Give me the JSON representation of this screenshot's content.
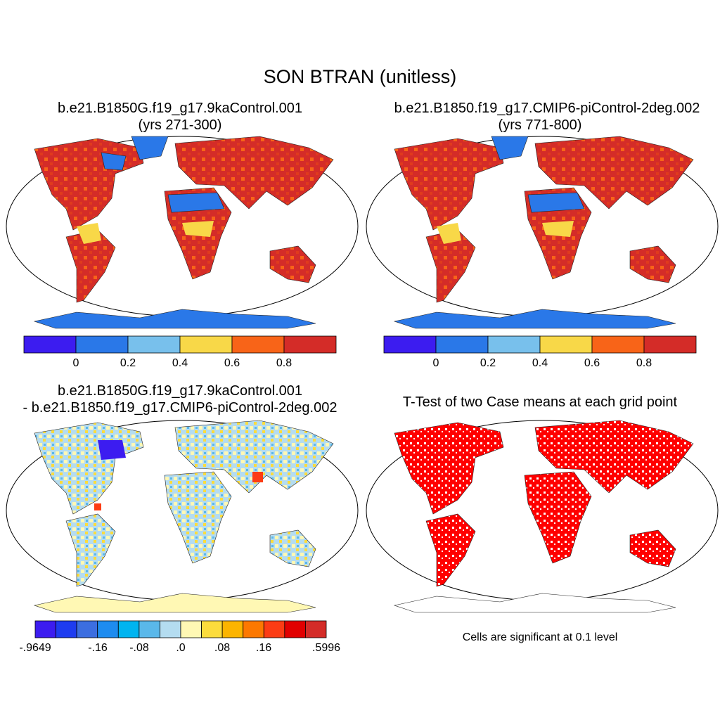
{
  "figure": {
    "title": "SON BTRAN (unitless)"
  },
  "panels": {
    "top_left": {
      "title_line1": "b.e21.B1850G.f19_g17.9kaControl.001",
      "title_line2": "(yrs 271-300)"
    },
    "top_right": {
      "title_line1": "b.e21.B1850.f19_g17.CMIP6-piControl-2deg.002",
      "title_line2": "(yrs 771-800)"
    },
    "bottom_left": {
      "title_line1": "b.e21.B1850G.f19_g17.9kaControl.001",
      "title_line2": "- b.e21.B1850.f19_g17.CMIP6-piControl-2deg.002"
    },
    "bottom_right": {
      "title": "T-Test of two Case means at each grid point",
      "note": "Cells are significant at 0.1 level"
    }
  },
  "colorbar_top": {
    "colors": [
      "#3c1cf0",
      "#2a78e8",
      "#78c0ec",
      "#f8d848",
      "#f86418",
      "#d42c28"
    ],
    "labels": [
      "0",
      "0.2",
      "0.4",
      "0.6",
      "0.8"
    ]
  },
  "colorbar_bottom": {
    "colors": [
      "#3c1cf0",
      "#1e3cf0",
      "#3c6ee0",
      "#1e8cf0",
      "#00b4f0",
      "#5ab8ea",
      "#b4dcf0",
      "#fff8b4",
      "#fcdc3c",
      "#fcb400",
      "#fc7800",
      "#fc3c14",
      "#e10000",
      "#d42c28"
    ],
    "labels": [
      "-.9649",
      "-.16",
      "-.08",
      ".0",
      ".08",
      ".16",
      ".5996"
    ]
  },
  "ttest_color": "#ff0000"
}
